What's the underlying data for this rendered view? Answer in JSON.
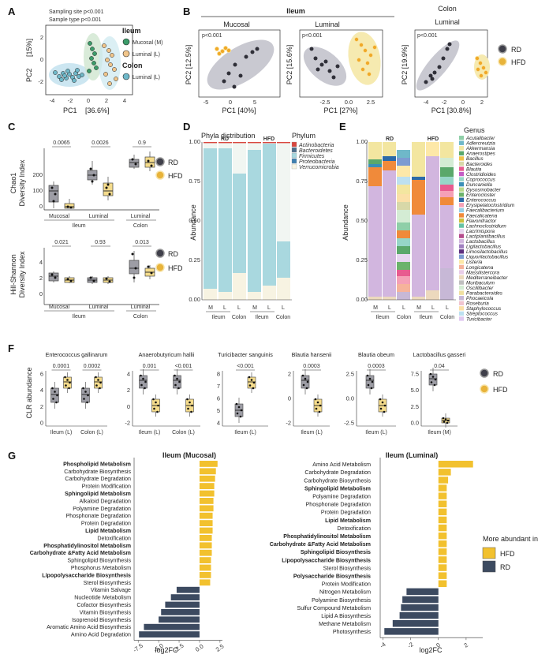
{
  "colors": {
    "rd": "#4a4a5a",
    "rd_fill": "#9d9da5",
    "hfd": "#e8b33a",
    "hfd_fill": "#f5dc8c",
    "ellipse_rd": "#c9c9d1",
    "ellipse_hfd": "#f6eab0",
    "ileum_blue": "#bfe0ee",
    "luminal_green": "#cfe6cf",
    "firmicutes": "#a9d8df",
    "bacteroidetes": "#4d6e8c",
    "actinobacteria": "#d9473f",
    "proteobacteria": "#3f7fb0",
    "verrucomicrobia": "#f7f3e2",
    "bar_rd": "#3c4a60",
    "bar_hfd": "#f2c12e"
  },
  "panelA": {
    "letter": "A",
    "stats": [
      "Sampling site p<0.001",
      "Sample type p<0.001"
    ],
    "xlabel": "PC1",
    "xpct": "[36.6%]",
    "ylabel": "PC2",
    "ypct": "[15%]",
    "xticks": [
      "-4",
      "-2",
      "0",
      "2",
      "4"
    ],
    "yticks": [
      "2",
      "0",
      "-2"
    ],
    "legend": {
      "ileum": "Ileum",
      "mucosal": "Mucosal (M)",
      "luminal": "Luminal (L)",
      "colon": "Colon",
      "colon_luminal": "Luminal (L)"
    }
  },
  "panelB": {
    "letter": "B",
    "ileum_title": "Ileum",
    "colon_title": "Colon",
    "sub": [
      "Mucosal",
      "Luminal",
      "Luminal"
    ],
    "pvals": [
      "p<0.001",
      "p<0.001",
      "p<0.001"
    ],
    "xlabels": [
      "PC1  [40%]",
      "PC1  [27%]",
      "PC1  [30.8%]"
    ],
    "ylabels": [
      "PC2  [12.5%]",
      "PC2  [15.6%]",
      "PC2  [19.9%]"
    ],
    "xticks": [
      [
        "-5",
        "0",
        "5"
      ],
      [
        "-2.5",
        "0.0",
        "2.5"
      ],
      [
        "-4",
        "-2",
        "0",
        "2"
      ]
    ],
    "legend": [
      "RD",
      "HFD"
    ]
  },
  "panelC": {
    "letter": "C",
    "top_ylabel": [
      "Chao1",
      "Diversity Index"
    ],
    "bottom_ylabel": [
      "Hill-Shannon",
      "Diversity Index"
    ],
    "top_pvals": [
      "0.0065",
      "0.0026",
      "0.9"
    ],
    "bottom_pvals": [
      "0.021",
      "0.93",
      "0.013"
    ],
    "groups": [
      "Mucosal",
      "Luminal",
      "Luminal"
    ],
    "sites": [
      "Ileum",
      "Colon"
    ],
    "legend": [
      "RD",
      "HFD"
    ]
  },
  "panelD": {
    "letter": "D",
    "title": "Phyla distribution",
    "legend_title": "Phylum",
    "phyla": [
      "Actinobacteria",
      "Bacteroidetes",
      "Firmicutes",
      "Proteobacteria",
      "Verrucomicrobia"
    ],
    "ylabel": "Abundance",
    "yticks": [
      "1.00",
      "0.75",
      "0.50",
      "0.25",
      "0.00"
    ],
    "groups": [
      "RD",
      "HFD"
    ],
    "xticks": [
      "M",
      "L",
      "L",
      "M",
      "L",
      "L"
    ],
    "sites": [
      "Ileum",
      "Colon",
      "Ileum",
      "Colon"
    ]
  },
  "panelE": {
    "letter": "E",
    "legend_title": "Genus",
    "genera": [
      "Acutalibacter",
      "Adlercreutzia",
      "Akkermansia",
      "Anaerostipes",
      "Bacillus",
      "Bacteroides",
      "Blautia",
      "Clostridioides",
      "Coprococcus",
      "Duncaniella",
      "Dysosmobacter",
      "Enterocloster",
      "Enterococcus",
      "Erysipelatoclostridium",
      "Faecalibacterium",
      "Faecalicatena",
      "Flavonifractor",
      "Lachnoclostridium",
      "Lacrimispora",
      "Lactiplantibacillus",
      "Lactobacillus",
      "Ligilactobacillus",
      "Limosilactobacillus",
      "Liquorilactobacillus",
      "Listeria",
      "Longicatena",
      "Massilistercora",
      "Mediterraneibacter",
      "Muribaculum",
      "Oscillibacter",
      "Parabacteroides",
      "Phocaeicola",
      "Roseburia",
      "Staphylococcus",
      "Streptococcus",
      "Turicibacter"
    ],
    "genus_colors": [
      "#8fcfa8",
      "#6fb8c9",
      "#f3e6a0",
      "#5aa86b",
      "#f0c24a",
      "#d8d8a8",
      "#e85b8f",
      "#c45cc5",
      "#96d6c8",
      "#3a8fb7",
      "#b8d98a",
      "#6bb36b",
      "#2b6aa8",
      "#f5a0b6",
      "#9acfe6",
      "#f08a3a",
      "#ccc03f",
      "#66c2a5",
      "#e7d6f0",
      "#b54b8c",
      "#d2b6df",
      "#a080c0",
      "#5d2f7f",
      "#7c9bd1",
      "#fde8a8",
      "#f6b39b",
      "#e8cde7",
      "#ecd9bd",
      "#bfbfbf",
      "#d4ecd4",
      "#f0e0a0",
      "#c7b8d6",
      "#f1c5d0",
      "#fbe0a8",
      "#bde0f0",
      "#e0c8f0"
    ],
    "ylabel": "Abundance",
    "yticks": [
      "1.00",
      "0.75",
      "0.50",
      "0.25",
      "0.00"
    ],
    "groups": [
      "RD",
      "HFD"
    ],
    "xticks": [
      "M",
      "L",
      "L",
      "M",
      "L",
      "L"
    ],
    "sites": [
      "Ileum",
      "Colon",
      "Ileum",
      "Colon"
    ]
  },
  "panelF": {
    "letter": "F",
    "ylabel": "CLR abundance",
    "legend": [
      "RD",
      "HFD"
    ],
    "subplots": [
      {
        "species": "Enterococcus gallinarum",
        "pvals": [
          "0.0001",
          "0.0002"
        ],
        "groups": [
          "Ileum (L)",
          "Colon (L)"
        ],
        "yticks": [
          "6",
          "4",
          "2",
          "0"
        ]
      },
      {
        "species": "Anaerobutyricum hallii",
        "pvals": [
          "0.001",
          "<0.001"
        ],
        "groups": [
          "Ileum (L)",
          "Colon (L)"
        ],
        "yticks": [
          "4",
          "2",
          "0",
          "-2"
        ]
      },
      {
        "species": "Turicibacter sanguinis",
        "pvals": [
          "<0.001"
        ],
        "groups": [
          "Ileum (L)"
        ],
        "yticks": [
          "8",
          "7",
          "6",
          "5",
          "4"
        ]
      },
      {
        "species": "Blautia hansenii",
        "pvals": [
          "0.0003"
        ],
        "groups": [
          "Ileum (L)"
        ],
        "yticks": [
          "2",
          "0",
          "-2"
        ]
      },
      {
        "species": "Blautia obeum",
        "pvals": [
          "0.0003"
        ],
        "groups": [
          "Ileum (L)"
        ],
        "yticks": [
          "2.5",
          "0.0",
          "-2.5"
        ]
      },
      {
        "species": "Lactobacillus gasseri",
        "pvals": [
          "0.04"
        ],
        "groups": [
          "Ileum (M)"
        ],
        "yticks": [
          "7.5",
          "5.0",
          "2.5",
          "0.0"
        ]
      }
    ]
  },
  "panelG": {
    "letter": "G",
    "xlabel": "log2FC",
    "legend_title": "More abundant in",
    "legend": [
      "HFD",
      "RD"
    ]
  },
  "chart_data": [
    {
      "type": "bar",
      "title": "Ileum (Mucosal)",
      "xlabel": "log2FC",
      "xlim": [
        -8,
        2.8
      ],
      "xticks": [
        "-7.5",
        "-5.0",
        "-2.5",
        "0.0",
        "2.5"
      ],
      "categories": [
        "Phospholipid Metabolism",
        "Carbohydrate Biosynthesis",
        "Carbohydrate Degradation",
        "Protein Modification",
        "Sphingolipid Metabolism",
        "Alkaloid Degradation",
        "Polyamine Degradation",
        "Phosphonate Degradation",
        "Protein Degradation",
        "Lipid Metabolism",
        "Detoxification",
        "Phosphatidylinositol Metabolism",
        "Carbohydrate &Fatty Acid Metabolism",
        "Sphingolipid Biosynthesis",
        "Phosphorus Metabolism",
        "Lipopolysaccharide Biosynthesis",
        "Sterol Biosynthesis",
        "Vitamin Salvage",
        "Nucleotide Metabolism",
        "Cofactor Biosynthesis",
        "Vitamin Biosynthesis",
        "Isoprenoid Biosynthesis",
        "Aromatic Amino Acid Biosynthesis",
        "Amino Acid Degradation"
      ],
      "bold": [
        true,
        false,
        false,
        false,
        true,
        false,
        false,
        false,
        false,
        true,
        false,
        true,
        true,
        false,
        false,
        true,
        false,
        false,
        false,
        false,
        false,
        false,
        false,
        false
      ],
      "values": [
        2.2,
        2.0,
        1.9,
        1.8,
        1.8,
        1.7,
        1.7,
        1.6,
        1.6,
        1.6,
        1.5,
        1.5,
        1.5,
        1.4,
        1.4,
        1.4,
        1.3,
        -2.8,
        -3.5,
        -4.2,
        -4.7,
        -5.0,
        -6.8,
        -7.4
      ]
    },
    {
      "type": "bar",
      "title": "Ileum (Luminal)",
      "xlabel": "log2FC",
      "xlim": [
        -4.2,
        3.2
      ],
      "xticks": [
        "-4",
        "-2",
        "0",
        "2"
      ],
      "categories": [
        "Amino Acid Metabolism",
        "Carbohydrate Degradation",
        "Carbohydrate Biosynthesis",
        "Sphingolipid Metabolism",
        "Polyamine Degradation",
        "Phosphonate Degradation",
        "Protein Degradation",
        "Lipid Metabolism",
        "Detoxification",
        "Phosphatidylinositol Metabolism",
        "Carbohydrate &Fatty Acid Metabolism",
        "Sphingolipid Biosynthesis",
        "Lipopolysaccharide Biosynthesis",
        "Sterol Biosynthesis",
        "Polysaccharide Biosynthesis",
        "Protein Modification",
        "Nitrogen Metabolism",
        "Polyamine Biosynthesis",
        "Sulfur Compound Metabolism",
        "Lipid A Biosynthesis",
        "Methane Metabolism",
        "Photosynthesis"
      ],
      "bold": [
        false,
        false,
        false,
        true,
        false,
        false,
        false,
        true,
        false,
        true,
        true,
        true,
        true,
        false,
        true,
        false,
        false,
        false,
        false,
        false,
        false,
        false
      ],
      "values": [
        2.5,
        0.9,
        0.7,
        0.6,
        0.6,
        0.6,
        0.6,
        0.6,
        0.6,
        0.6,
        0.6,
        0.6,
        0.6,
        0.6,
        0.6,
        0.6,
        -2.3,
        -2.6,
        -2.7,
        -2.8,
        -3.3,
        -3.9
      ]
    }
  ]
}
